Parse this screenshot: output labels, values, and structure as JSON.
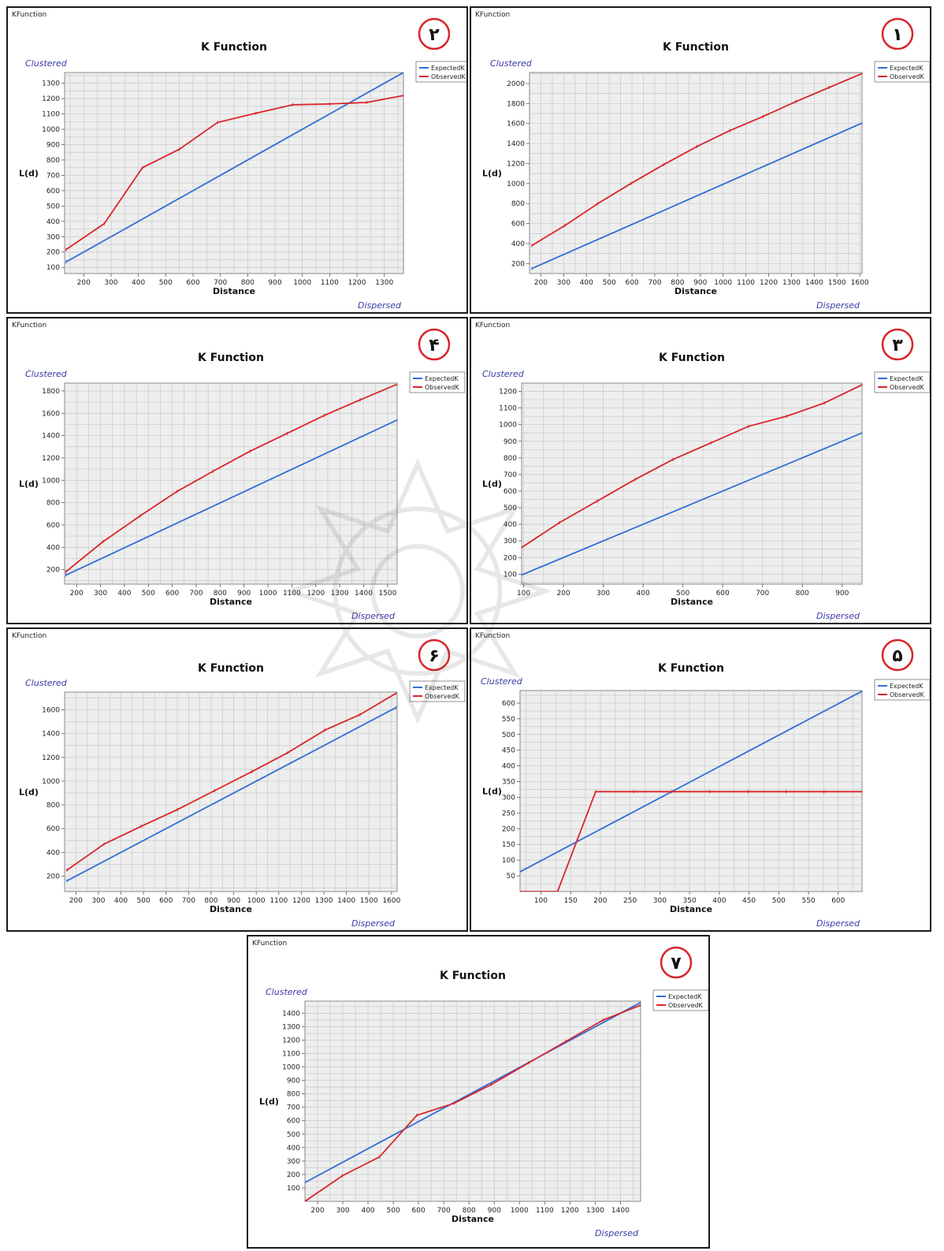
{
  "colors": {
    "expected": "#2f6fd6",
    "observed": "#d9252a",
    "badge": "#d9252a",
    "hint": "#3a3aa8",
    "plot_bg": "#eeeeee",
    "grid": "#c8c8c8"
  },
  "window_title": "KFunction",
  "chart_title": "K Function",
  "xlabel": "Distance",
  "ylabel": "L(d)",
  "clustered": "Clustered",
  "dispersed": "Dispersed",
  "legend": {
    "expected": "ExpectedK",
    "observed": "ObservedK"
  },
  "chart_data": [
    {
      "id": "panel-2",
      "badge": "۲",
      "type": "line",
      "xlim": [
        130,
        1370
      ],
      "ylim": [
        60,
        1370
      ],
      "xticks": [
        200,
        300,
        400,
        500,
        600,
        700,
        800,
        900,
        1000,
        1100,
        1200,
        1300
      ],
      "yticks": [
        100,
        200,
        300,
        400,
        500,
        600,
        700,
        800,
        900,
        1000,
        1100,
        1200,
        1300
      ],
      "series": [
        {
          "name": "ExpectedK",
          "x": [
            135,
            1370
          ],
          "y": [
            135,
            1370
          ]
        },
        {
          "name": "ObservedK",
          "x": [
            135,
            275,
            415,
            550,
            690,
            830,
            965,
            1100,
            1235,
            1370
          ],
          "y": [
            215,
            385,
            750,
            870,
            1045,
            1105,
            1160,
            1165,
            1175,
            1220
          ]
        }
      ]
    },
    {
      "id": "panel-1",
      "badge": "۱",
      "type": "line",
      "xlim": [
        150,
        1610
      ],
      "ylim": [
        100,
        2110
      ],
      "xticks": [
        200,
        300,
        400,
        500,
        600,
        700,
        800,
        900,
        1000,
        1100,
        1200,
        1300,
        1400,
        1500,
        1600
      ],
      "yticks": [
        200,
        400,
        600,
        800,
        1000,
        1200,
        1400,
        1600,
        1800,
        2000
      ],
      "series": [
        {
          "name": "ExpectedK",
          "x": [
            160,
            1610
          ],
          "y": [
            150,
            1605
          ]
        },
        {
          "name": "ObservedK",
          "x": [
            160,
            305,
            450,
            595,
            740,
            885,
            1030,
            1175,
            1320,
            1465,
            1610
          ],
          "y": [
            380,
            580,
            800,
            1000,
            1190,
            1370,
            1530,
            1670,
            1820,
            1960,
            2100
          ]
        }
      ]
    },
    {
      "id": "panel-4",
      "badge": "۴",
      "type": "line",
      "xlim": [
        150,
        1540
      ],
      "ylim": [
        70,
        1870
      ],
      "xticks": [
        200,
        300,
        400,
        500,
        600,
        700,
        800,
        900,
        1000,
        1100,
        1200,
        1300,
        1400,
        1500
      ],
      "yticks": [
        200,
        400,
        600,
        800,
        1000,
        1200,
        1400,
        1600,
        1800
      ],
      "series": [
        {
          "name": "ExpectedK",
          "x": [
            155,
            1540
          ],
          "y": [
            150,
            1540
          ]
        },
        {
          "name": "ObservedK",
          "x": [
            155,
            310,
            465,
            620,
            770,
            925,
            1080,
            1235,
            1385,
            1540
          ],
          "y": [
            180,
            450,
            680,
            900,
            1080,
            1260,
            1420,
            1580,
            1720,
            1860
          ]
        }
      ]
    },
    {
      "id": "panel-3",
      "badge": "۳",
      "type": "line",
      "xlim": [
        95,
        950
      ],
      "ylim": [
        40,
        1250
      ],
      "xticks": [
        100,
        200,
        300,
        400,
        500,
        600,
        700,
        800,
        900
      ],
      "yticks": [
        100,
        200,
        300,
        400,
        500,
        600,
        700,
        800,
        900,
        1000,
        1100,
        1200
      ],
      "series": [
        {
          "name": "ExpectedK",
          "x": [
            95,
            950
          ],
          "y": [
            95,
            950
          ]
        },
        {
          "name": "ObservedK",
          "x": [
            95,
            190,
            285,
            380,
            475,
            570,
            665,
            760,
            855,
            950
          ],
          "y": [
            260,
            410,
            540,
            670,
            790,
            890,
            990,
            1050,
            1130,
            1240
          ]
        }
      ]
    },
    {
      "id": "panel-6",
      "badge": "۶",
      "type": "line",
      "xlim": [
        150,
        1625
      ],
      "ylim": [
        70,
        1750
      ],
      "xticks": [
        200,
        300,
        400,
        500,
        600,
        700,
        800,
        900,
        1000,
        1100,
        1200,
        1300,
        1400,
        1500,
        1600
      ],
      "yticks": [
        200,
        400,
        600,
        800,
        1000,
        1200,
        1400,
        1600
      ],
      "series": [
        {
          "name": "ExpectedK",
          "x": [
            160,
            1620
          ],
          "y": [
            160,
            1620
          ]
        },
        {
          "name": "ObservedK",
          "x": [
            160,
            325,
            490,
            650,
            815,
            980,
            1140,
            1305,
            1460,
            1620
          ],
          "y": [
            250,
            470,
            620,
            760,
            920,
            1080,
            1240,
            1430,
            1560,
            1740
          ]
        }
      ]
    },
    {
      "id": "panel-5",
      "badge": "۵",
      "type": "line",
      "xlim": [
        65,
        640
      ],
      "ylim": [
        0,
        640
      ],
      "xticks": [
        100,
        150,
        200,
        250,
        300,
        350,
        400,
        450,
        500,
        550,
        600
      ],
      "yticks": [
        50,
        100,
        150,
        200,
        250,
        300,
        350,
        400,
        450,
        500,
        550,
        600
      ],
      "series": [
        {
          "name": "ExpectedK",
          "x": [
            65,
            640
          ],
          "y": [
            63,
            638
          ]
        },
        {
          "name": "ObservedK",
          "x": [
            65,
            128,
            192,
            256,
            320,
            384,
            448,
            512,
            576,
            640
          ],
          "y": [
            0,
            0,
            318,
            318,
            318,
            318,
            318,
            318,
            318,
            318
          ]
        }
      ]
    },
    {
      "id": "panel-7",
      "badge": "۷",
      "type": "line",
      "xlim": [
        150,
        1480
      ],
      "ylim": [
        0,
        1490
      ],
      "xticks": [
        200,
        300,
        400,
        500,
        600,
        700,
        800,
        900,
        1000,
        1100,
        1200,
        1300,
        1400
      ],
      "yticks": [
        100,
        200,
        300,
        400,
        500,
        600,
        700,
        800,
        900,
        1000,
        1100,
        1200,
        1300,
        1400
      ],
      "series": [
        {
          "name": "ExpectedK",
          "x": [
            150,
            1480
          ],
          "y": [
            140,
            1480
          ]
        },
        {
          "name": "ObservedK",
          "x": [
            150,
            298,
            445,
            593,
            741,
            889,
            1036,
            1184,
            1332,
            1480
          ],
          "y": [
            0,
            190,
            330,
            640,
            730,
            870,
            1030,
            1190,
            1350,
            1460
          ]
        }
      ]
    }
  ]
}
